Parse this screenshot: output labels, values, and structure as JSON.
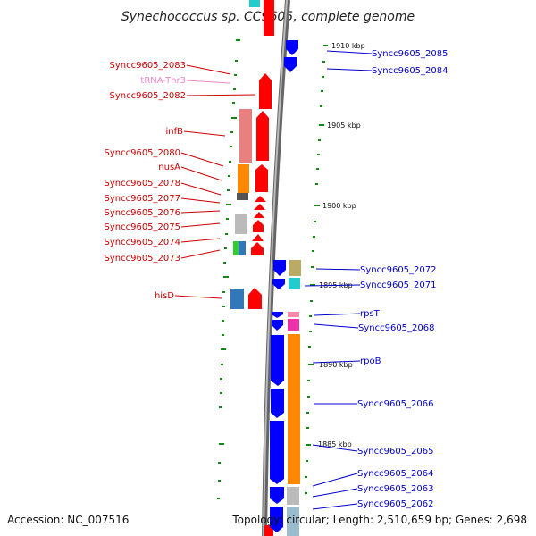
{
  "title": "Synechococcus sp. CC9605, complete genome",
  "accession": "Accession: NC_007516",
  "topology": "Topology: circular; Length: 2,510,659 bp; Genes: 2,698",
  "colors": {
    "forward_cds": "#ff0000",
    "reverse_cds": "#0000ff",
    "forward_label": "#cc0000",
    "reverse_label": "#0000cc",
    "trna_label": "#ee88cc",
    "tick": "#118811",
    "backbone": "#888888"
  },
  "scale_labels": {
    "k1910": "1910 kbp",
    "k1905": "1905 kbp",
    "k1900": "1900 kbp",
    "k1895": "1895 kbp",
    "k1890": "1890 kbp",
    "k1885": "1885 kbp"
  },
  "forward_labels": {
    "g2083": "Syncc9605_2083",
    "trna": "tRNA-Thr3",
    "g2082": "Syncc9605_2082",
    "infB": "infB",
    "g2080": "Syncc9605_2080",
    "nusA": "nusA",
    "g2078": "Syncc9605_2078",
    "g2077": "Syncc9605_2077",
    "g2076": "Syncc9605_2076",
    "g2075": "Syncc9605_2075",
    "g2074": "Syncc9605_2074",
    "g2073": "Syncc9605_2073",
    "hisD": "hisD"
  },
  "reverse_labels": {
    "g2085": "Syncc9605_2085",
    "g2084": "Syncc9605_2084",
    "g2072": "Syncc9605_2072",
    "g2071": "Syncc9605_2071",
    "rpsT": "rpsT",
    "g2068": "Syncc9605_2068",
    "rpoB": "rpoB",
    "g2066": "Syncc9605_2066",
    "g2065": "Syncc9605_2065",
    "g2064": "Syncc9605_2064",
    "g2063": "Syncc9605_2063",
    "g2062": "Syncc9605_2062"
  }
}
